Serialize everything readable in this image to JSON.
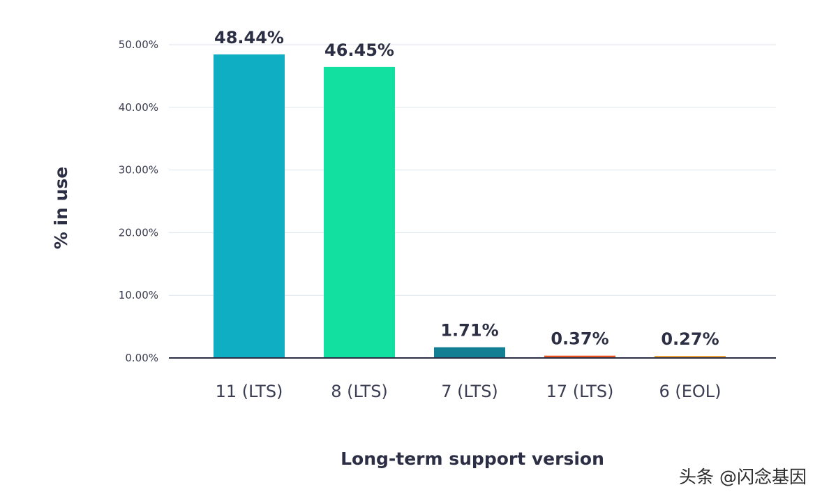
{
  "chart_data": {
    "type": "bar",
    "categories": [
      "11 (LTS)",
      "8 (LTS)",
      "7 (LTS)",
      "17 (LTS)",
      "6 (EOL)"
    ],
    "values": [
      48.44,
      46.45,
      1.71,
      0.37,
      0.27
    ],
    "data_labels": [
      "48.44%",
      "46.45%",
      "1.71%",
      "0.37%",
      "0.27%"
    ],
    "bar_colors": [
      "#10aec2",
      "#12e0a0",
      "#137f92",
      "#e8541e",
      "#e8a236"
    ],
    "title": "",
    "xlabel": "Long-term support version",
    "ylabel": "% in use",
    "ylim": [
      0,
      50
    ],
    "yticks": [
      0,
      10,
      20,
      30,
      40,
      50
    ],
    "ytick_labels": [
      "0.00%",
      "10.00%",
      "20.00%",
      "30.00%",
      "40.00%",
      "50.00%"
    ],
    "grid": true,
    "legend": "none"
  },
  "watermark": "头条 @闪念基因"
}
